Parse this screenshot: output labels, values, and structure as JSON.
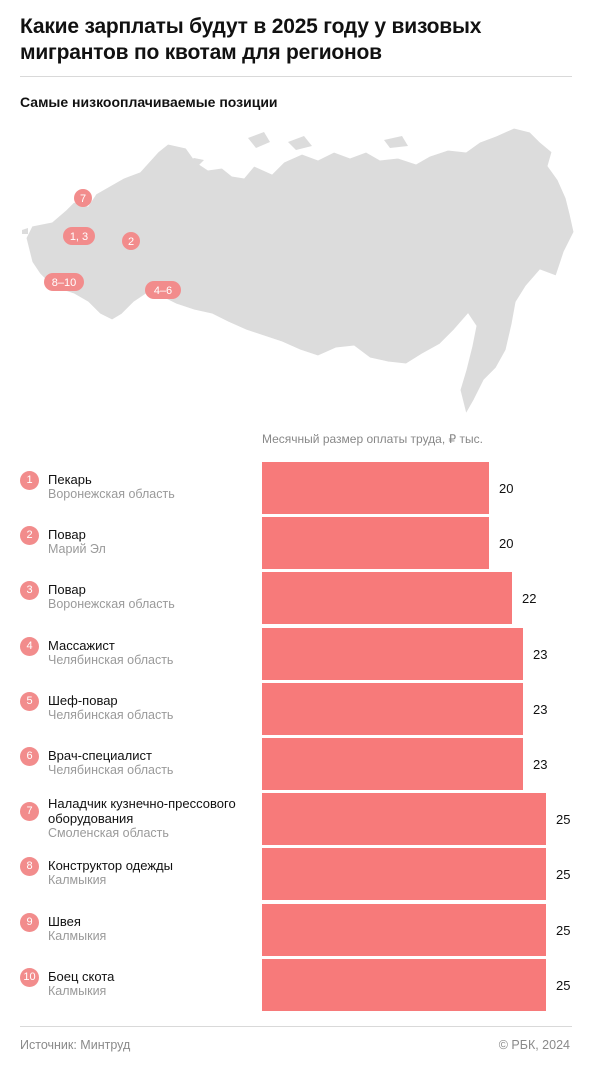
{
  "title": "Какие зарплаты будут в 2025 году у визовых мигрантов по квотам для регионов",
  "subtitle": "Самые низкооплачиваемые позиции",
  "map_markers": [
    "7",
    "1, 3",
    "2",
    "8–10",
    "4–6"
  ],
  "footer": {
    "source": "Источник: Минтруд",
    "copyright": "© РБК, 2024"
  },
  "colors": {
    "bar": "#f77a7a",
    "marker": "#f28c8c",
    "map": "#dcdcdc"
  },
  "chart_data": {
    "type": "bar",
    "orientation": "horizontal",
    "unit_label": "Месячный размер оплаты труда, ₽ тыс.",
    "categories": [
      {
        "rank": "1",
        "position": "Пекарь",
        "region": "Воронежская область"
      },
      {
        "rank": "2",
        "position": "Повар",
        "region": "Марий Эл"
      },
      {
        "rank": "3",
        "position": "Повар",
        "region": "Воронежская область"
      },
      {
        "rank": "4",
        "position": "Массажист",
        "region": "Челябинская область"
      },
      {
        "rank": "5",
        "position": "Шеф-повар",
        "region": "Челябинская область"
      },
      {
        "rank": "6",
        "position": "Врач-специалист",
        "region": "Челябинская область"
      },
      {
        "rank": "7",
        "position": "Наладчик кузнечно-прессового оборудования",
        "region": "Смоленская область"
      },
      {
        "rank": "8",
        "position": "Конструктор одежды",
        "region": "Калмыкия"
      },
      {
        "rank": "9",
        "position": "Швея",
        "region": "Калмыкия"
      },
      {
        "rank": "10",
        "position": "Боец скота",
        "region": "Калмыкия"
      }
    ],
    "values": [
      20,
      20,
      22,
      23,
      23,
      23,
      25,
      25,
      25,
      25
    ],
    "xlim": [
      0,
      25
    ]
  }
}
